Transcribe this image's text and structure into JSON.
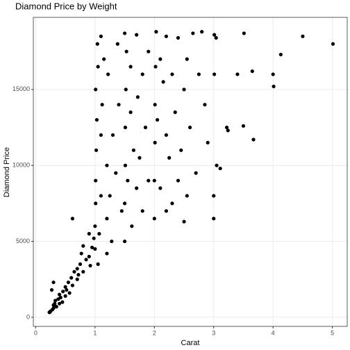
{
  "chart_data": {
    "type": "scatter",
    "title": "Diamond Price by Weight",
    "x_label": "Carat",
    "y_label": "Diamond Price",
    "color": "#000000",
    "grid": true,
    "xlim": [
      -0.04,
      5.25
    ],
    "ylim": [
      -599,
      19748
    ],
    "xticks": [
      0,
      1,
      2,
      3,
      4,
      5
    ],
    "yticks": [
      0,
      5000,
      10000,
      15000
    ],
    "x": [
      0.23,
      0.25,
      0.28,
      0.3,
      0.3,
      0.32,
      0.35,
      0.33,
      0.38,
      0.4,
      0.4,
      0.42,
      0.45,
      0.46,
      0.5,
      0.5,
      0.52,
      0.55,
      0.57,
      0.6,
      0.62,
      0.65,
      0.7,
      0.7,
      0.72,
      0.75,
      0.77,
      0.8,
      0.8,
      0.85,
      0.9,
      0.9,
      0.92,
      0.95,
      0.98,
      0.3,
      0.27,
      0.62,
      0.24,
      1.0,
      1.0,
      1.01,
      1.01,
      1.02,
      1.03,
      1.01,
      1.05,
      1.04,
      1.07,
      1.1,
      1.1,
      1.12,
      1.15,
      1.1,
      1.2,
      1.2,
      1.22,
      1.25,
      1.3,
      1.28,
      1.35,
      1.38,
      1.4,
      1.45,
      1.05,
      1.2,
      1.5,
      1.5,
      1.51,
      1.51,
      1.52,
      1.53,
      1.5,
      1.55,
      1.6,
      1.6,
      1.62,
      1.65,
      1.7,
      1.7,
      1.72,
      1.75,
      1.8,
      1.8,
      1.85,
      1.9,
      1.9,
      2.0,
      2.0,
      2.01,
      2.01,
      2.02,
      2.03,
      2.05,
      2.1,
      2.1,
      2.15,
      2.2,
      2.2,
      2.25,
      2.3,
      2.3,
      2.35,
      2.4,
      2.4,
      2.45,
      2.5,
      2.5,
      2.55,
      2.6,
      2.65,
      2.7,
      2.75,
      2.8,
      2.55,
      2.2,
      3.0,
      3.0,
      3.01,
      3.01,
      3.04,
      3.05,
      3.11,
      3.22,
      3.24,
      3.4,
      3.5,
      3.51,
      3.65,
      3.67,
      4.0,
      4.01,
      4.13,
      4.5,
      5.01,
      2.9,
      2.85
    ],
    "y": [
      326,
      400,
      500,
      600,
      800,
      900,
      700,
      1100,
      1200,
      900,
      1500,
      1300,
      1000,
      1700,
      1400,
      2000,
      1800,
      2300,
      1600,
      2600,
      2100,
      3000,
      2500,
      3200,
      2800,
      3500,
      4200,
      3000,
      4700,
      3800,
      4000,
      5500,
      3400,
      4600,
      5200,
      2300,
      1800,
      6500,
      340,
      4500,
      6000,
      7500,
      9000,
      11000,
      13000,
      15000,
      16500,
      18000,
      5500,
      8000,
      12000,
      14000,
      17000,
      18500,
      6500,
      10000,
      16000,
      8000,
      12000,
      5000,
      9500,
      18000,
      14000,
      7000,
      3500,
      4200,
      5000,
      7500,
      10000,
      12500,
      15000,
      17500,
      18700,
      9000,
      13500,
      16500,
      6000,
      11000,
      8500,
      18600,
      14500,
      10500,
      16000,
      7000,
      12500,
      9000,
      17500,
      6500,
      9000,
      11500,
      14000,
      16500,
      18800,
      13000,
      17000,
      8500,
      15500,
      12000,
      18500,
      10500,
      16000,
      7500,
      13500,
      18400,
      9000,
      11000,
      15000,
      6300,
      17000,
      12500,
      18700,
      9500,
      16000,
      18800,
      8000,
      7000,
      6500,
      8000,
      16000,
      18600,
      18400,
      10000,
      9800,
      12500,
      12300,
      16000,
      12600,
      18700,
      16200,
      11700,
      16000,
      15200,
      17300,
      18500,
      18000,
      11500,
      14000
    ]
  }
}
